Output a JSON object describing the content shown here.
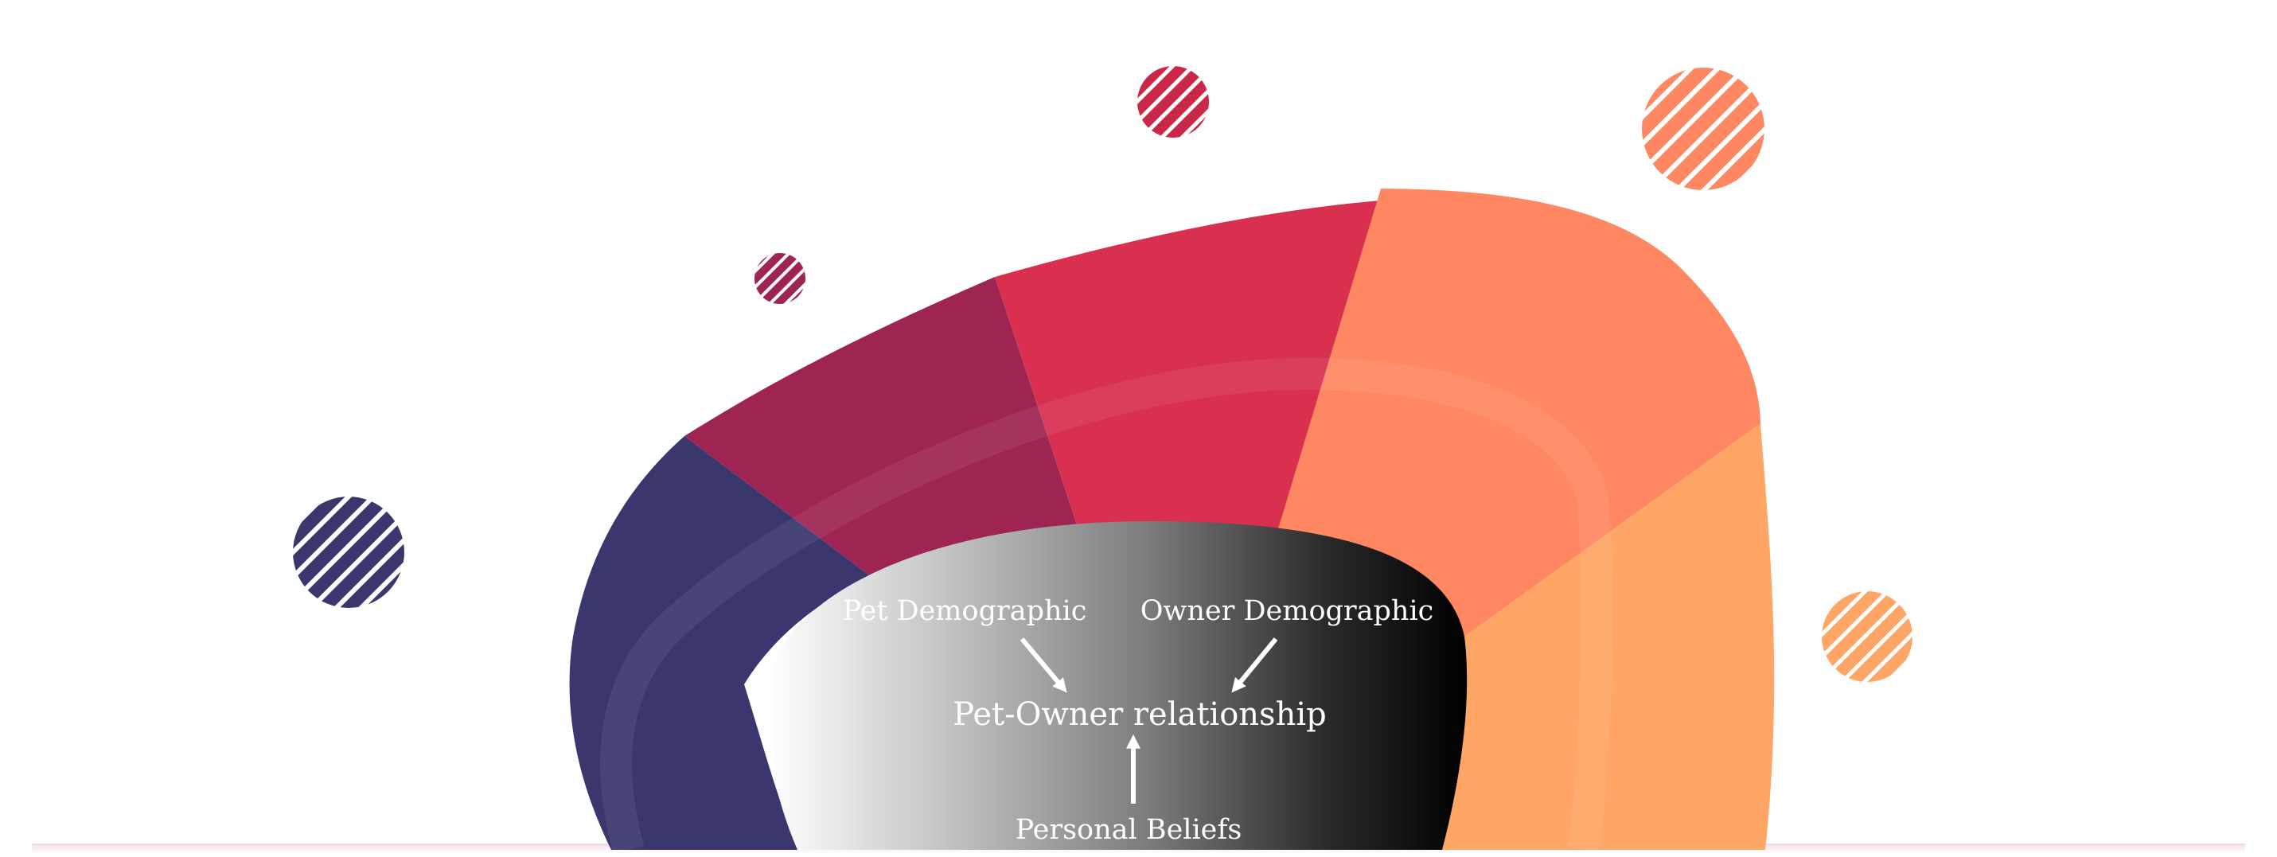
{
  "diagram": {
    "labels": {
      "pet_demographic": "Pet Demographic",
      "owner_demographic": "Owner Demographic",
      "center": "Pet-Owner relationship",
      "personal_beliefs": "Personal Beliefs"
    },
    "colors": {
      "navy": "#3a376e",
      "plum": "#9e2453",
      "crimson": "#d93050",
      "coral": "#ff8762",
      "peach": "#ffa565",
      "center_light": "#ffffff",
      "center_dark": "#000000"
    },
    "decorations": [
      "hatched-circle-navy",
      "hatched-circle-plum",
      "hatched-circle-crimson",
      "hatched-circle-coral",
      "hatched-circle-peach"
    ]
  }
}
